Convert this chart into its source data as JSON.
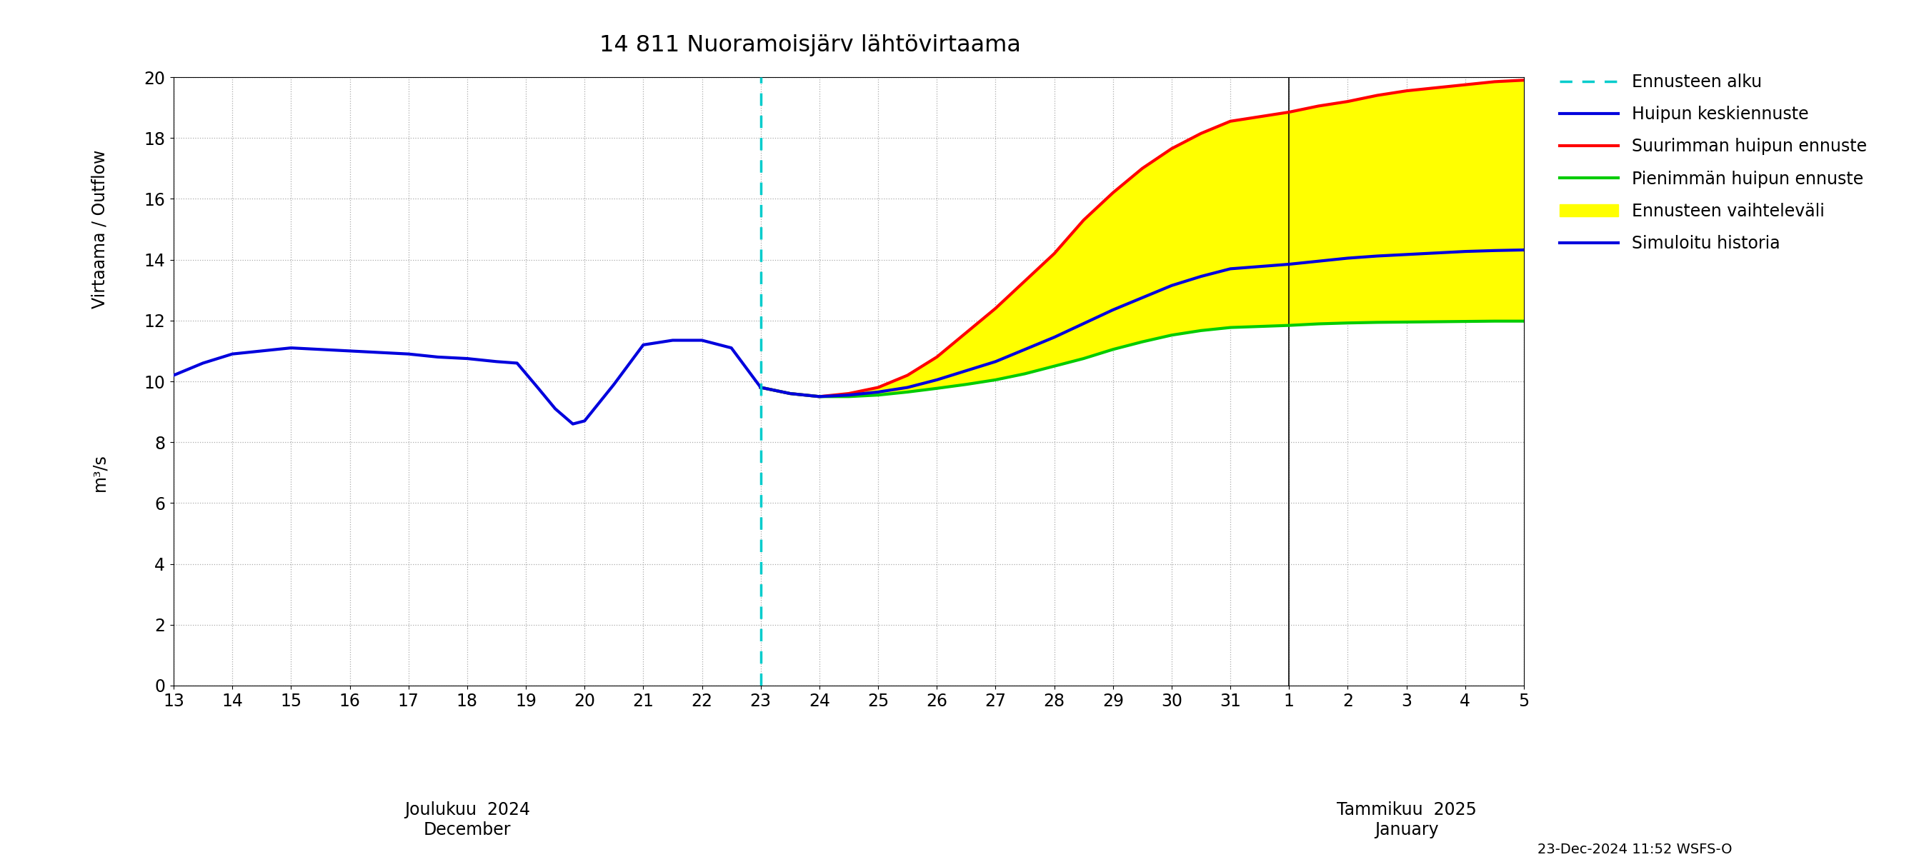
{
  "title": "14 811 Nuoramoisjärv lähtövirtaama",
  "ylabel": "Virtaama / Outflow",
  "yunits": "m³/s",
  "ylim": [
    0,
    20
  ],
  "yticks": [
    0,
    2,
    4,
    6,
    8,
    10,
    12,
    14,
    16,
    18,
    20
  ],
  "timestamp": "23-Dec-2024 11:52 WSFS-O",
  "background_color": "#ffffff",
  "grid_color": "#aaaaaa",
  "history_color": "#0000dd",
  "mean_color": "#0000dd",
  "max_color": "#ff0000",
  "min_color": "#00cc00",
  "fill_color": "#ffff00",
  "vline_color": "#00cccc",
  "hist_x_raw": [
    13,
    13.5,
    14,
    14.5,
    15,
    15.5,
    16,
    16.5,
    17,
    17.5,
    18,
    18.5,
    18.85,
    19.2,
    19.5,
    19.8,
    20,
    20.5,
    21,
    21.5,
    22,
    22.5,
    23
  ],
  "hist_y": [
    10.2,
    10.6,
    10.9,
    11.0,
    11.1,
    11.05,
    11.0,
    10.95,
    10.9,
    10.8,
    10.75,
    10.65,
    10.6,
    9.8,
    9.1,
    8.6,
    8.7,
    9.9,
    11.2,
    11.35,
    11.35,
    11.1,
    9.8
  ],
  "fc_dec_raw": [
    23,
    23.5,
    24,
    24.5,
    25,
    25.5,
    26,
    26.5,
    27,
    27.5,
    28,
    28.5,
    29,
    29.5,
    30,
    30.5,
    31
  ],
  "fc_jan_raw": [
    1,
    1.5,
    2,
    2.5,
    3,
    3.5,
    4,
    4.5,
    5
  ],
  "mean_y": [
    9.8,
    9.6,
    9.5,
    9.55,
    9.65,
    9.8,
    10.05,
    10.35,
    10.65,
    11.05,
    11.45,
    11.9,
    12.35,
    12.75,
    13.15,
    13.45,
    13.7,
    13.85,
    13.95,
    14.05,
    14.12,
    14.17,
    14.22,
    14.27,
    14.3,
    14.32
  ],
  "max_y": [
    9.8,
    9.6,
    9.5,
    9.6,
    9.8,
    10.2,
    10.8,
    11.6,
    12.4,
    13.3,
    14.2,
    15.3,
    16.2,
    17.0,
    17.65,
    18.15,
    18.55,
    18.85,
    19.05,
    19.2,
    19.4,
    19.55,
    19.65,
    19.75,
    19.85,
    19.9
  ],
  "min_y": [
    9.8,
    9.6,
    9.5,
    9.5,
    9.55,
    9.65,
    9.77,
    9.9,
    10.05,
    10.25,
    10.5,
    10.75,
    11.05,
    11.3,
    11.52,
    11.67,
    11.77,
    11.84,
    11.89,
    11.92,
    11.94,
    11.95,
    11.96,
    11.97,
    11.98,
    11.98
  ],
  "legend_entries": [
    {
      "label": "Ennusteen alku",
      "type": "dashed_line",
      "color": "#00cccc"
    },
    {
      "label": "Huipun keskiennuste",
      "type": "line",
      "color": "#0000dd"
    },
    {
      "label": "Suurimman huipun ennuste",
      "type": "line",
      "color": "#ff0000"
    },
    {
      "label": "Pienimmän huipun ennuste",
      "type": "line",
      "color": "#00cc00"
    },
    {
      "label": "Ennusteen vaihteleväli",
      "type": "patch",
      "color": "#ffff00"
    },
    {
      "label": "Simuloitu historia",
      "type": "line",
      "color": "#0000dd"
    }
  ]
}
